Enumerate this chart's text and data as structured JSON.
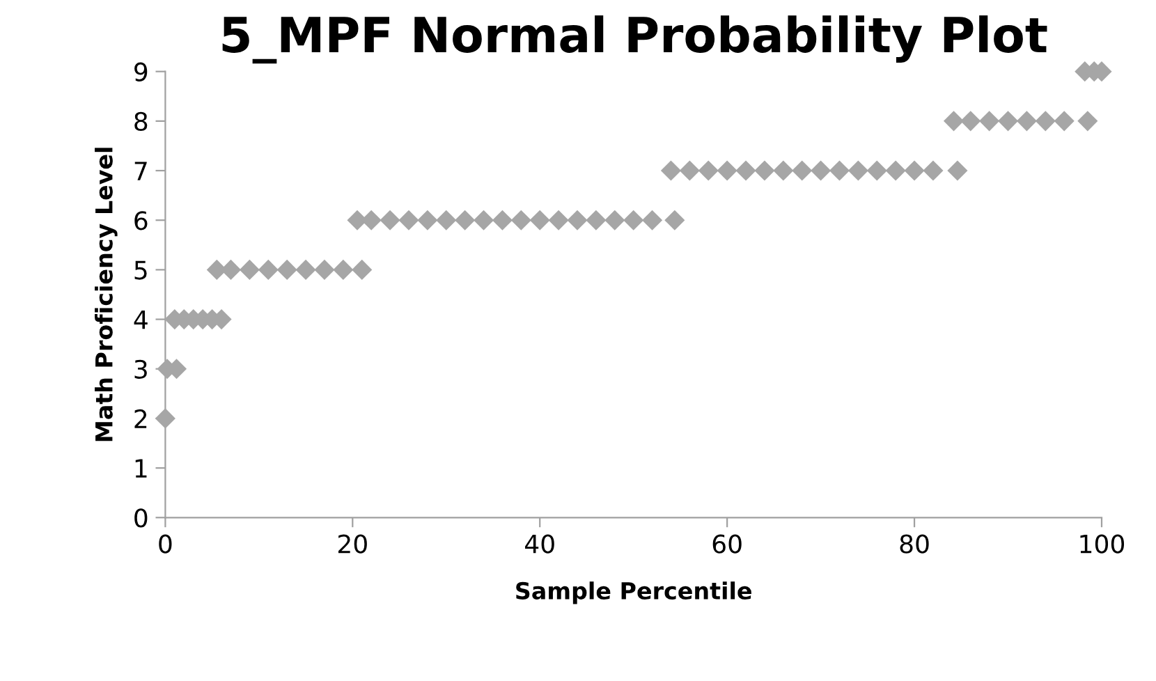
{
  "chart_data": {
    "type": "scatter",
    "title": "5_MPF Normal Probability Plot",
    "xlabel": "Sample Percentile",
    "ylabel": "Math Proficiency Level",
    "series": [
      {
        "color": "#a6a6a6",
        "x": [
          0,
          0.2,
          1.2,
          1,
          2,
          3,
          4,
          5,
          6,
          5.5,
          7,
          9,
          11,
          13,
          15,
          17,
          19,
          21,
          20.5,
          22,
          24,
          26,
          28,
          30,
          32,
          34,
          36,
          38,
          40,
          42,
          44,
          46,
          48,
          50,
          52,
          54.4,
          54,
          56,
          58,
          60,
          62,
          64,
          66,
          68,
          70,
          72,
          74,
          76,
          78,
          80,
          82,
          84.6,
          84.2,
          86,
          88,
          90,
          92,
          94,
          96,
          98.5,
          98.2,
          99.2,
          100
        ],
        "values": [
          2,
          3,
          3,
          4,
          4,
          4,
          4,
          4,
          4,
          5,
          5,
          5,
          5,
          5,
          5,
          5,
          5,
          5,
          6,
          6,
          6,
          6,
          6,
          6,
          6,
          6,
          6,
          6,
          6,
          6,
          6,
          6,
          6,
          6,
          6,
          6,
          7,
          7,
          7,
          7,
          7,
          7,
          7,
          7,
          7,
          7,
          7,
          7,
          7,
          7,
          7,
          7,
          8,
          8,
          8,
          8,
          8,
          8,
          8,
          8,
          9,
          9,
          9
        ]
      }
    ],
    "xlim": [
      0,
      100
    ],
    "xticks": [
      0,
      20,
      40,
      60,
      80,
      100
    ],
    "ylim": [
      0,
      9
    ],
    "yticks": [
      0,
      1,
      2,
      3,
      4,
      5,
      6,
      7,
      8,
      9
    ],
    "grid": false,
    "legend": false,
    "marker": "diamond"
  }
}
